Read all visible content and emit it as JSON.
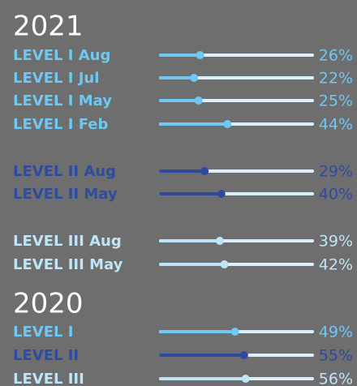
{
  "chart_data": {
    "type": "dot-bar",
    "xlim": [
      0,
      100
    ],
    "track_color": "#dcf0fb",
    "groups": [
      {
        "title": "2021",
        "categories": [
          "LEVEL I Aug",
          "LEVEL I Jul",
          "LEVEL I May",
          "LEVEL I Feb",
          "LEVEL II Aug",
          "LEVEL II May",
          "LEVEL III Aug",
          "LEVEL III May"
        ],
        "values": [
          26,
          22,
          25,
          44,
          29,
          40,
          39,
          42
        ],
        "value_labels": [
          "26%",
          "22%",
          "25%",
          "44%",
          "29%",
          "40%",
          "39%",
          "42%"
        ],
        "colors": [
          "#6ec8f2",
          "#6ec8f2",
          "#6ec8f2",
          "#6ec8f2",
          "#2f4b9f",
          "#2f4b9f",
          "#bfe4f6",
          "#bfe4f6"
        ]
      },
      {
        "title": "2020",
        "categories": [
          "LEVEL I",
          "LEVEL II",
          "LEVEL III"
        ],
        "values": [
          49,
          55,
          56
        ],
        "value_labels": [
          "49%",
          "55%",
          "56%"
        ],
        "colors": [
          "#6ec8f2",
          "#2f4b9f",
          "#bfe4f6"
        ]
      }
    ]
  }
}
